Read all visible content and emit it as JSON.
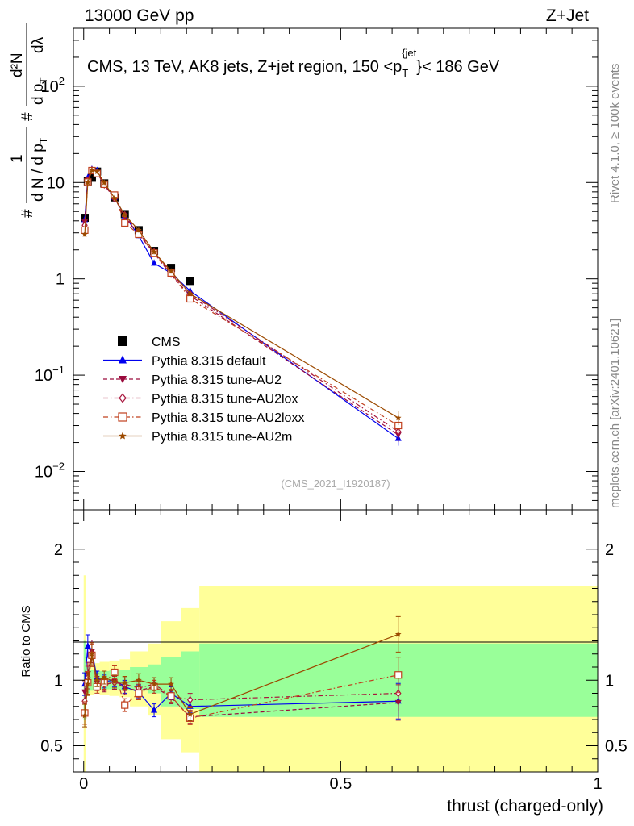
{
  "header": {
    "energy_label": "13000 GeV pp",
    "process_label": "Z+Jet"
  },
  "side_labels": {
    "rivet": "Rivet 4.1.0, ≥ 100k events",
    "mcplots": "mcplots.cern.ch [arXiv:2401.10621]"
  },
  "chart_data": [
    {
      "type": "line",
      "panel": "main",
      "title": "CMS, 13 TeV, AK8 jets, Z+jet region, 150 <p_T^{jet}< 186 GeV",
      "title_main": "CMS, 13 TeV, AK8 jets, Z+jet region, 150 <p",
      "title_sub": "T",
      "title_sup": "{jet",
      "title_close": "}",
      "title_tail": "< 186 GeV",
      "ylabel": "1/dN/dp_T # d²N/dp_T dλ",
      "ylabel_parts": {
        "hash": "#",
        "one": "1",
        "den": "d N / d p",
        "den_sub": "T",
        "num": "d²N",
        "num2": "d p",
        "num2_sub": "T",
        "dl": "dλ"
      },
      "yscale": "log",
      "ylim": [
        0.004,
        400
      ],
      "xlim": [
        -0.02,
        1.0
      ],
      "ytick_labels": [
        {
          "value": 0.01,
          "base": "10",
          "exp": "−2"
        },
        {
          "value": 0.1,
          "base": "10",
          "exp": "−1"
        },
        {
          "value": 1,
          "base": "1",
          "exp": ""
        },
        {
          "value": 10,
          "base": "10",
          "exp": ""
        },
        {
          "value": 100,
          "base": "10",
          "exp": "2"
        }
      ],
      "watermark": "(CMS_2021_I1920187)",
      "series": [
        {
          "name": "CMS",
          "color": "#000000",
          "marker": "square",
          "x": [
            0.002,
            0.008,
            0.016,
            0.026,
            0.04,
            0.06,
            0.08,
            0.107,
            0.137,
            0.17,
            0.207
          ],
          "values": [
            4.3,
            10.3,
            11.2,
            13.0,
            9.8,
            7.0,
            4.7,
            3.2,
            1.95,
            1.3,
            0.95
          ],
          "error_bars": false
        },
        {
          "name": "Pythia 8.315 default",
          "color": "#0000ee",
          "marker": "triangle-up",
          "line": "solid",
          "x": [
            0.002,
            0.008,
            0.016,
            0.026,
            0.04,
            0.06,
            0.08,
            0.107,
            0.137,
            0.17,
            0.207,
            0.612
          ],
          "values": [
            4.1,
            11.2,
            13.7,
            13.3,
            9.7,
            7.0,
            4.5,
            2.8,
            1.45,
            1.15,
            0.75,
            0.022
          ]
        },
        {
          "name": "Pythia 8.315 tune-AU2",
          "color": "#9a0a3c",
          "marker": "triangle-down",
          "line": "dashed",
          "x": [
            0.002,
            0.008,
            0.016,
            0.026,
            0.04,
            0.06,
            0.08,
            0.107,
            0.137,
            0.17,
            0.207,
            0.612
          ],
          "values": [
            3.9,
            10.8,
            13.7,
            12.8,
            9.4,
            6.9,
            4.4,
            2.9,
            1.85,
            1.1,
            0.67,
            0.024
          ]
        },
        {
          "name": "Pythia 8.315 tune-AU2lox",
          "color": "#a8143c",
          "marker": "diamond-open",
          "line": "dashdot",
          "x": [
            0.002,
            0.008,
            0.016,
            0.026,
            0.04,
            0.06,
            0.08,
            0.107,
            0.137,
            0.17,
            0.207,
            0.612
          ],
          "values": [
            3.6,
            10.5,
            13.5,
            12.6,
            9.5,
            6.8,
            4.6,
            3.0,
            1.9,
            1.15,
            0.7,
            0.026
          ]
        },
        {
          "name": "Pythia 8.315 tune-AU2loxx",
          "color": "#c0401e",
          "marker": "square-open",
          "line": "dashdot",
          "x": [
            0.002,
            0.008,
            0.016,
            0.026,
            0.04,
            0.06,
            0.08,
            0.107,
            0.137,
            0.17,
            0.207,
            0.612
          ],
          "values": [
            3.2,
            10.1,
            13.3,
            12.4,
            9.6,
            7.4,
            3.8,
            2.9,
            1.85,
            1.15,
            0.62,
            0.03
          ]
        },
        {
          "name": "Pythia 8.315 tune-AU2m",
          "color": "#9c4a00",
          "marker": "star",
          "line": "solid",
          "x": [
            0.002,
            0.008,
            0.016,
            0.026,
            0.04,
            0.06,
            0.08,
            0.107,
            0.137,
            0.17,
            0.207,
            0.612
          ],
          "values": [
            2.9,
            10.0,
            13.5,
            13.0,
            10.0,
            6.9,
            4.6,
            3.2,
            1.9,
            1.2,
            0.7,
            0.036
          ]
        }
      ]
    },
    {
      "type": "line",
      "panel": "ratio",
      "ylabel": "Ratio to CMS",
      "ylim": [
        0.3,
        2.3
      ],
      "xlim": [
        -0.02,
        1.0
      ],
      "xlabel": "thrust (charged-only)",
      "ytick_labels": [
        {
          "value": 0.5,
          "label": "0.5"
        },
        {
          "value": 1,
          "label": "1"
        },
        {
          "value": 2,
          "label": "2"
        }
      ],
      "xtick_labels": [
        {
          "value": 0,
          "label": "0"
        },
        {
          "value": 0.5,
          "label": "0.5"
        },
        {
          "value": 1,
          "label": "1"
        }
      ],
      "bands": {
        "edges": [
          0.0,
          0.005,
          0.012,
          0.021,
          0.031,
          0.05,
          0.07,
          0.09,
          0.125,
          0.15,
          0.19,
          0.225,
          1.0
        ],
        "green_lo": [
          0.7,
          0.9,
          0.92,
          0.93,
          0.93,
          0.93,
          0.92,
          0.92,
          0.9,
          0.8,
          0.78,
          0.72
        ],
        "green_hi": [
          1.3,
          1.1,
          1.08,
          1.07,
          1.07,
          1.08,
          1.08,
          1.1,
          1.12,
          1.18,
          1.22,
          1.28
        ],
        "yellow_lo": [
          0.3,
          0.88,
          0.89,
          0.9,
          0.89,
          0.88,
          0.87,
          0.8,
          0.73,
          0.55,
          0.45,
          0.3
        ],
        "yellow_hi": [
          1.8,
          1.13,
          1.12,
          1.13,
          1.14,
          1.15,
          1.16,
          1.22,
          1.28,
          1.45,
          1.55,
          1.72
        ]
      },
      "series": [
        {
          "name": "Pythia 8.315 default",
          "color": "#0000ee",
          "marker": "triangle-up",
          "line": "solid",
          "x": [
            0.002,
            0.008,
            0.016,
            0.026,
            0.04,
            0.06,
            0.08,
            0.107,
            0.137,
            0.17,
            0.207,
            0.612
          ],
          "values": [
            0.97,
            1.26,
            1.22,
            1.02,
            0.99,
            1.0,
            0.95,
            0.91,
            0.77,
            0.9,
            0.8,
            0.84
          ]
        },
        {
          "name": "Pythia 8.315 tune-AU2",
          "color": "#9a0a3c",
          "marker": "triangle-down",
          "line": "dashed",
          "x": [
            0.002,
            0.008,
            0.016,
            0.026,
            0.04,
            0.06,
            0.08,
            0.107,
            0.137,
            0.17,
            0.207,
            0.612
          ],
          "values": [
            0.91,
            1.05,
            1.22,
            0.98,
            0.96,
            0.99,
            0.94,
            0.92,
            0.95,
            0.87,
            0.72,
            0.83
          ]
        },
        {
          "name": "Pythia 8.315 tune-AU2lox",
          "color": "#a8143c",
          "marker": "diamond-open",
          "line": "dashdot",
          "x": [
            0.002,
            0.008,
            0.016,
            0.026,
            0.04,
            0.06,
            0.08,
            0.107,
            0.137,
            0.17,
            0.207,
            0.612
          ],
          "values": [
            0.84,
            1.02,
            1.2,
            0.97,
            0.97,
            0.98,
            0.97,
            0.94,
            0.97,
            0.88,
            0.85,
            0.9
          ]
        },
        {
          "name": "Pythia 8.315 tune-AU2loxx",
          "color": "#c0401e",
          "marker": "square-open",
          "line": "dashdot",
          "x": [
            0.002,
            0.008,
            0.016,
            0.026,
            0.04,
            0.06,
            0.08,
            0.107,
            0.137,
            0.17,
            0.207,
            0.612
          ],
          "values": [
            0.75,
            0.98,
            1.19,
            0.95,
            0.98,
            1.06,
            0.81,
            0.9,
            0.95,
            0.88,
            0.71,
            1.04
          ]
        },
        {
          "name": "Pythia 8.315 tune-AU2m",
          "color": "#9c4a00",
          "marker": "star",
          "line": "solid",
          "x": [
            0.002,
            0.008,
            0.016,
            0.026,
            0.04,
            0.06,
            0.08,
            0.107,
            0.137,
            0.17,
            0.207,
            0.612
          ],
          "values": [
            0.73,
            0.97,
            1.2,
            1.0,
            1.02,
            0.99,
            0.98,
            1.0,
            0.97,
            0.97,
            0.74,
            1.35
          ]
        }
      ]
    }
  ]
}
